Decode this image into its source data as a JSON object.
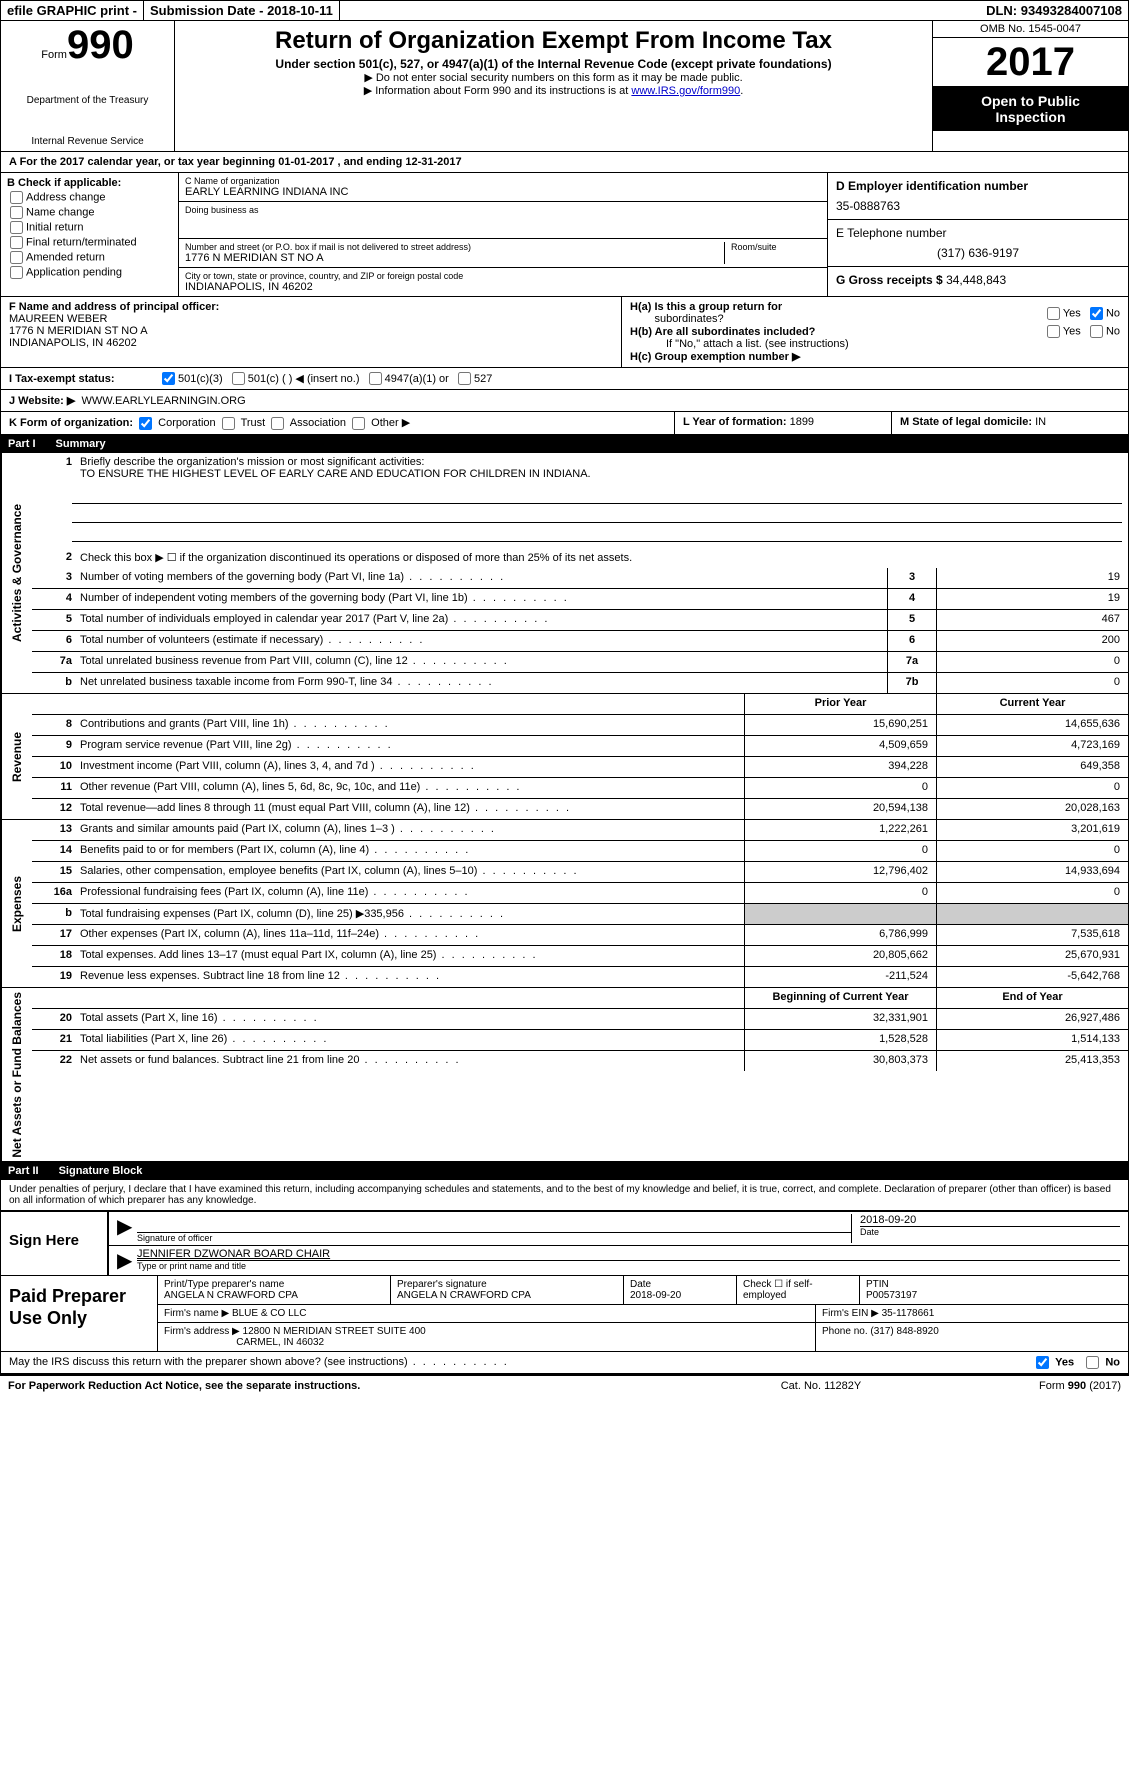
{
  "topbar": {
    "efile": "efile GRAPHIC print -",
    "subdate_label": "Submission Date -",
    "subdate": "2018-10-11",
    "dln_label": "DLN:",
    "dln": "93493284007108"
  },
  "header": {
    "form_prefix": "Form",
    "form_number": "990",
    "dept1": "Department of the Treasury",
    "dept2": "Internal Revenue Service",
    "title": "Return of Organization Exempt From Income Tax",
    "subtitle": "Under section 501(c), 527, or 4947(a)(1) of the Internal Revenue Code (except private foundations)",
    "note1": "▶ Do not enter social security numbers on this form as it may be made public.",
    "note2_pre": "▶ Information about Form 990 and its instructions is at ",
    "note2_link": "www.IRS.gov/form990",
    "omb": "OMB No. 1545-0047",
    "year": "2017",
    "open1": "Open to Public",
    "open2": "Inspection"
  },
  "sectionA": {
    "text_pre": "A  For the 2017 calendar year, or tax year beginning ",
    "begin": "01-01-2017",
    "mid": "   , and ending ",
    "end": "12-31-2017"
  },
  "colB": {
    "header": "B Check if applicable:",
    "items": [
      "Address change",
      "Name change",
      "Initial return",
      "Final return/terminated",
      "Amended return",
      "Application pending"
    ]
  },
  "colC": {
    "name_label": "C Name of organization",
    "name": "EARLY LEARNING INDIANA INC",
    "dba_label": "Doing business as",
    "dba": "",
    "street_label": "Number and street (or P.O. box if mail is not delivered to street address)",
    "street": "1776 N MERIDIAN ST NO A",
    "room_label": "Room/suite",
    "city_label": "City or town, state or province, country, and ZIP or foreign postal code",
    "city": "INDIANAPOLIS, IN  46202"
  },
  "colD": {
    "ein_label": "D Employer identification number",
    "ein": "35-0888763",
    "phone_label": "E Telephone number",
    "phone": "(317) 636-9197",
    "gross_label": "G Gross receipts $",
    "gross": "34,448,843"
  },
  "rowF": {
    "label": "F  Name and address of principal officer:",
    "name": "MAUREEN WEBER",
    "addr1": "1776 N MERIDIAN ST NO A",
    "addr2": "INDIANAPOLIS, IN  46202"
  },
  "rowH": {
    "ha": "H(a)  Is this a group return for",
    "ha2": "subordinates?",
    "hb": "H(b)  Are all subordinates included?",
    "hb_note": "If \"No,\" attach a list. (see instructions)",
    "hc": "H(c)  Group exemption number ▶",
    "yes": "Yes",
    "no": "No"
  },
  "rowI": {
    "label": "I  Tax-exempt status:",
    "opt1": "501(c)(3)",
    "opt2": "501(c) (   ) ◀ (insert no.)",
    "opt3": "4947(a)(1) or",
    "opt4": "527"
  },
  "rowJ": {
    "label": "J  Website: ▶",
    "url": "WWW.EARLYLEARNINGIN.ORG"
  },
  "rowK": {
    "label": "K Form of organization:",
    "opts": [
      "Corporation",
      "Trust",
      "Association",
      "Other ▶"
    ]
  },
  "rowL": {
    "label": "L Year of formation:",
    "val": "1899"
  },
  "rowM": {
    "label": "M State of legal domicile:",
    "val": "IN"
  },
  "part1": {
    "num": "Part I",
    "title": "Summary",
    "vlabels": {
      "gov": "Activities & Governance",
      "rev": "Revenue",
      "exp": "Expenses",
      "net": "Net Assets or Fund Balances"
    },
    "line1": {
      "num": "1",
      "desc": "Briefly describe the organization's mission or most significant activities:",
      "mission": "TO ENSURE THE HIGHEST LEVEL OF EARLY CARE AND EDUCATION FOR CHILDREN IN INDIANA."
    },
    "line2": "Check this box ▶ ☐  if the organization discontinued its operations or disposed of more than 25% of its net assets.",
    "gov_lines": [
      {
        "n": "3",
        "d": "Number of voting members of the governing body (Part VI, line 1a)",
        "b": "3",
        "v": "19"
      },
      {
        "n": "4",
        "d": "Number of independent voting members of the governing body (Part VI, line 1b)",
        "b": "4",
        "v": "19"
      },
      {
        "n": "5",
        "d": "Total number of individuals employed in calendar year 2017 (Part V, line 2a)",
        "b": "5",
        "v": "467"
      },
      {
        "n": "6",
        "d": "Total number of volunteers (estimate if necessary)",
        "b": "6",
        "v": "200"
      },
      {
        "n": "7a",
        "d": "Total unrelated business revenue from Part VIII, column (C), line 12",
        "b": "7a",
        "v": "0"
      },
      {
        "n": "b",
        "d": "Net unrelated business taxable income from Form 990-T, line 34",
        "b": "7b",
        "v": "0"
      }
    ],
    "col_prior": "Prior Year",
    "col_current": "Current Year",
    "rev_lines": [
      {
        "n": "8",
        "d": "Contributions and grants (Part VIII, line 1h)",
        "p": "15,690,251",
        "c": "14,655,636"
      },
      {
        "n": "9",
        "d": "Program service revenue (Part VIII, line 2g)",
        "p": "4,509,659",
        "c": "4,723,169"
      },
      {
        "n": "10",
        "d": "Investment income (Part VIII, column (A), lines 3, 4, and 7d )",
        "p": "394,228",
        "c": "649,358"
      },
      {
        "n": "11",
        "d": "Other revenue (Part VIII, column (A), lines 5, 6d, 8c, 9c, 10c, and 11e)",
        "p": "0",
        "c": "0"
      },
      {
        "n": "12",
        "d": "Total revenue—add lines 8 through 11 (must equal Part VIII, column (A), line 12)",
        "p": "20,594,138",
        "c": "20,028,163"
      }
    ],
    "exp_lines": [
      {
        "n": "13",
        "d": "Grants and similar amounts paid (Part IX, column (A), lines 1–3 )",
        "p": "1,222,261",
        "c": "3,201,619"
      },
      {
        "n": "14",
        "d": "Benefits paid to or for members (Part IX, column (A), line 4)",
        "p": "0",
        "c": "0"
      },
      {
        "n": "15",
        "d": "Salaries, other compensation, employee benefits (Part IX, column (A), lines 5–10)",
        "p": "12,796,402",
        "c": "14,933,694"
      },
      {
        "n": "16a",
        "d": "Professional fundraising fees (Part IX, column (A), line 11e)",
        "p": "0",
        "c": "0"
      },
      {
        "n": "b",
        "d": "Total fundraising expenses (Part IX, column (D), line 25) ▶335,956",
        "p": "gray",
        "c": "gray"
      },
      {
        "n": "17",
        "d": "Other expenses (Part IX, column (A), lines 11a–11d, 11f–24e)",
        "p": "6,786,999",
        "c": "7,535,618"
      },
      {
        "n": "18",
        "d": "Total expenses. Add lines 13–17 (must equal Part IX, column (A), line 25)",
        "p": "20,805,662",
        "c": "25,670,931"
      },
      {
        "n": "19",
        "d": "Revenue less expenses. Subtract line 18 from line 12",
        "p": "-211,524",
        "c": "-5,642,768"
      }
    ],
    "col_begin": "Beginning of Current Year",
    "col_end": "End of Year",
    "net_lines": [
      {
        "n": "20",
        "d": "Total assets (Part X, line 16)",
        "p": "32,331,901",
        "c": "26,927,486"
      },
      {
        "n": "21",
        "d": "Total liabilities (Part X, line 26)",
        "p": "1,528,528",
        "c": "1,514,133"
      },
      {
        "n": "22",
        "d": "Net assets or fund balances. Subtract line 21 from line 20",
        "p": "30,803,373",
        "c": "25,413,353"
      }
    ]
  },
  "part2": {
    "num": "Part II",
    "title": "Signature Block",
    "perjury": "Under penalties of perjury, I declare that I have examined this return, including accompanying schedules and statements, and to the best of my knowledge and belief, it is true, correct, and complete. Declaration of preparer (other than officer) is based on all information of which preparer has any knowledge.",
    "sign_here": "Sign Here",
    "sig_officer": "Signature of officer",
    "sig_date": "2018-09-20",
    "date_label": "Date",
    "officer_name": "JENNIFER DZWONAR  BOARD CHAIR",
    "name_label": "Type or print name and title"
  },
  "prep": {
    "label": "Paid Preparer Use Only",
    "name_label": "Print/Type preparer's name",
    "name": "ANGELA N CRAWFORD CPA",
    "sig_label": "Preparer's signature",
    "sig": "ANGELA N CRAWFORD CPA",
    "date_label": "Date",
    "date": "2018-09-20",
    "check_label": "Check ☐ if self-employed",
    "ptin_label": "PTIN",
    "ptin": "P00573197",
    "firm_name_label": "Firm's name    ▶",
    "firm_name": "BLUE & CO LLC",
    "firm_ein_label": "Firm's EIN ▶",
    "firm_ein": "35-1178661",
    "firm_addr_label": "Firm's address ▶",
    "firm_addr1": "12800 N MERIDIAN STREET SUITE 400",
    "firm_addr2": "CARMEL, IN  46032",
    "phone_label": "Phone no.",
    "phone": "(317) 848-8920"
  },
  "discuss": {
    "text": "May the IRS discuss this return with the preparer shown above? (see instructions)",
    "yes": "Yes",
    "no": "No"
  },
  "footer": {
    "left": "For Paperwork Reduction Act Notice, see the separate instructions.",
    "mid": "Cat. No. 11282Y",
    "right_pre": "Form ",
    "right_form": "990",
    "right_suf": " (2017)"
  }
}
